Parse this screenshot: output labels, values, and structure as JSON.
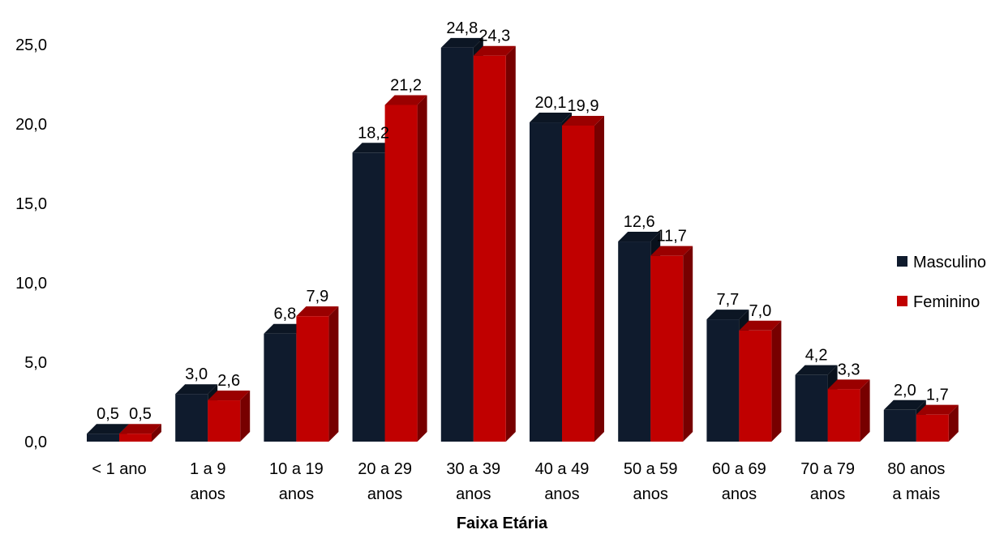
{
  "chart_data": {
    "type": "bar",
    "title": "",
    "xlabel": "Faixa Etária",
    "ylabel": "",
    "ylim": [
      0,
      25
    ],
    "yticks": [
      "0,0",
      "5,0",
      "10,0",
      "15,0",
      "20,0",
      "25,0"
    ],
    "categories": [
      [
        "< 1 ano"
      ],
      [
        "1 a 9",
        "anos"
      ],
      [
        "10 a 19",
        "anos"
      ],
      [
        "20 a 29",
        "anos"
      ],
      [
        "30 a 39",
        "anos"
      ],
      [
        "40 a 49",
        "anos"
      ],
      [
        "50 a 59",
        "anos"
      ],
      [
        "60 a 69",
        "anos"
      ],
      [
        "70 a 79",
        "anos"
      ],
      [
        "80 anos",
        "a mais"
      ]
    ],
    "series": [
      {
        "name": "Masculino",
        "color": "#0f1b2d",
        "values": [
          0.5,
          3.0,
          6.8,
          18.2,
          24.8,
          20.1,
          12.6,
          7.7,
          4.2,
          2.0
        ],
        "labels": [
          "0,5",
          "3,0",
          "6,8",
          "18,2",
          "24,8",
          "20,1",
          "12,6",
          "7,7",
          "4,2",
          "2,0"
        ]
      },
      {
        "name": "Feminino",
        "color": "#c00000",
        "values": [
          0.5,
          2.6,
          7.9,
          21.2,
          24.3,
          19.9,
          11.7,
          7.0,
          3.3,
          1.7
        ],
        "labels": [
          "0,5",
          "2,6",
          "7,9",
          "21,2",
          "24,3",
          "19,9",
          "11,7",
          "7,0",
          "3,3",
          "1,7"
        ]
      }
    ],
    "grid": false,
    "legend_position": "right",
    "style": "3d-bar"
  }
}
